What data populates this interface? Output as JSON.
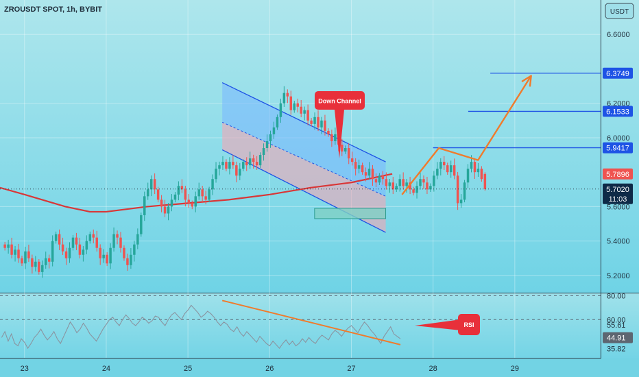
{
  "header": {
    "symbol_line": "ZROUSDT SPOT, 1h, BYBIT"
  },
  "currency_badge": "USDT",
  "colors": {
    "bg_top": "#aee6ec",
    "bg_bottom": "#6fd3e6",
    "bull": "#26a69a",
    "bear": "#ef5350",
    "ma": "#d93637",
    "level": "#1e53e5",
    "arrow": "#f07b2c",
    "callout": "#e8303a"
  },
  "chart_data": {
    "type": "candlestick",
    "x_tick_labels": [
      "23",
      "24",
      "25",
      "26",
      "27",
      "28",
      "29"
    ],
    "x_tick_days": [
      23,
      24,
      25,
      26,
      27,
      28,
      29
    ],
    "y_tick_labels": [
      "6.6000",
      "6.2000",
      "6.0000",
      "5.6000",
      "5.4000",
      "5.2000"
    ],
    "y_tick_values": [
      6.6,
      6.2,
      6.0,
      5.6,
      5.4,
      5.2
    ],
    "ylim": [
      5.1,
      6.8
    ],
    "xlim_days": [
      22.7,
      30.05
    ],
    "price_levels": [
      {
        "label": "6.3749",
        "value": 6.3749,
        "from_day": 28.7
      },
      {
        "label": "6.1533",
        "value": 6.1533,
        "from_day": 28.43
      },
      {
        "label": "5.9417",
        "value": 5.9417,
        "from_day": 28.0
      }
    ],
    "last_price_label": "5.7896",
    "last_price": 5.7896,
    "current_price_label": "5.7020",
    "current_price": 5.702,
    "countdown": "11:03",
    "channel": {
      "label": "Down Channel",
      "upper": [
        [
          25.42,
          6.32
        ],
        [
          27.42,
          5.86
        ]
      ],
      "mid": [
        [
          25.42,
          6.09
        ],
        [
          27.42,
          5.66
        ]
      ],
      "lower": [
        [
          25.42,
          5.93
        ],
        [
          27.42,
          5.45
        ]
      ]
    },
    "support_box": {
      "day_range": [
        26.55,
        27.42
      ],
      "price_range": [
        5.53,
        5.59
      ]
    },
    "projection_path": [
      [
        27.62,
        5.67
      ],
      [
        28.07,
        5.94
      ],
      [
        28.55,
        5.87
      ],
      [
        29.2,
        6.36
      ]
    ],
    "ma_line": [
      [
        22.7,
        5.71
      ],
      [
        23.0,
        5.67
      ],
      [
        23.5,
        5.6
      ],
      [
        23.8,
        5.57
      ],
      [
        24.0,
        5.57
      ],
      [
        24.5,
        5.6
      ],
      [
        25.0,
        5.62
      ],
      [
        25.5,
        5.64
      ],
      [
        26.0,
        5.67
      ],
      [
        26.5,
        5.71
      ],
      [
        27.0,
        5.74
      ],
      [
        27.3,
        5.77
      ],
      [
        27.5,
        5.79
      ]
    ],
    "candles_hourly_close": [
      5.36,
      5.38,
      5.32,
      5.35,
      5.3,
      5.27,
      5.34,
      5.3,
      5.25,
      5.28,
      5.22,
      5.26,
      5.3,
      5.28,
      5.4,
      5.44,
      5.38,
      5.34,
      5.3,
      5.36,
      5.42,
      5.38,
      5.32,
      5.35,
      5.4,
      5.44,
      5.42,
      5.36,
      5.3,
      5.32,
      5.27,
      5.36,
      5.44,
      5.42,
      5.36,
      5.3,
      5.26,
      5.32,
      5.38,
      5.44,
      5.55,
      5.66,
      5.7,
      5.76,
      5.7,
      5.64,
      5.6,
      5.56,
      5.6,
      5.64,
      5.67,
      5.72,
      5.7,
      5.64,
      5.62,
      5.6,
      5.66,
      5.7,
      5.66,
      5.64,
      5.7,
      5.76,
      5.82,
      5.84,
      5.86,
      5.82,
      5.86,
      5.84,
      5.78,
      5.82,
      5.86,
      5.84,
      5.88,
      5.86,
      5.84,
      5.9,
      5.94,
      5.98,
      6.02,
      6.06,
      6.12,
      6.2,
      6.26,
      6.24,
      6.16,
      6.2,
      6.18,
      6.14,
      6.16,
      6.1,
      6.08,
      6.12,
      6.06,
      6.1,
      6.04,
      6.02,
      5.98,
      6.02,
      5.96,
      5.92,
      5.94,
      5.88,
      5.86,
      5.82,
      5.84,
      5.8,
      5.78,
      5.82,
      5.76,
      5.74,
      5.78,
      5.76,
      5.72,
      5.74,
      5.7,
      5.72,
      5.76,
      5.72,
      5.74,
      5.7,
      5.68,
      5.72,
      5.76,
      5.74,
      5.7,
      5.72,
      5.78,
      5.82,
      5.86,
      5.84,
      5.8,
      5.84,
      5.78,
      5.62,
      5.64,
      5.74,
      5.82,
      5.86,
      5.8,
      5.82,
      5.76
    ],
    "rsi": {
      "label": "RSI",
      "levels_labels": [
        "80.00",
        "60.00"
      ],
      "levels": [
        80,
        60
      ],
      "value_labels": [
        "55.61",
        "44.91",
        "35.82"
      ],
      "values": [
        55.61,
        44.91,
        35.82
      ],
      "ylim": [
        28,
        82
      ],
      "trendline": [
        [
          25.42,
          76
        ],
        [
          27.6,
          39
        ]
      ],
      "series": [
        45,
        50,
        42,
        48,
        40,
        38,
        44,
        41,
        36,
        40,
        45,
        48,
        52,
        47,
        43,
        46,
        50,
        44,
        40,
        46,
        52,
        58,
        54,
        49,
        52,
        57,
        53,
        48,
        45,
        42,
        47,
        52,
        56,
        60,
        62,
        58,
        55,
        60,
        64,
        61,
        57,
        55,
        58,
        62,
        60,
        57,
        59,
        63,
        62,
        58,
        55,
        60,
        64,
        66,
        63,
        60,
        65,
        68,
        72,
        69,
        66,
        62,
        64,
        67,
        65,
        62,
        58,
        55,
        58,
        56,
        52,
        50,
        54,
        49,
        46,
        50,
        47,
        44,
        41,
        46,
        43,
        40,
        38,
        42,
        39,
        36,
        40,
        43,
        39,
        42,
        38,
        40,
        44,
        41,
        45,
        42,
        40,
        44,
        47,
        45,
        43,
        48,
        51,
        49,
        46,
        50,
        53,
        55,
        52,
        49,
        54,
        58,
        55,
        51,
        48,
        44,
        40,
        46,
        50,
        54,
        48,
        46,
        44
      ]
    }
  }
}
